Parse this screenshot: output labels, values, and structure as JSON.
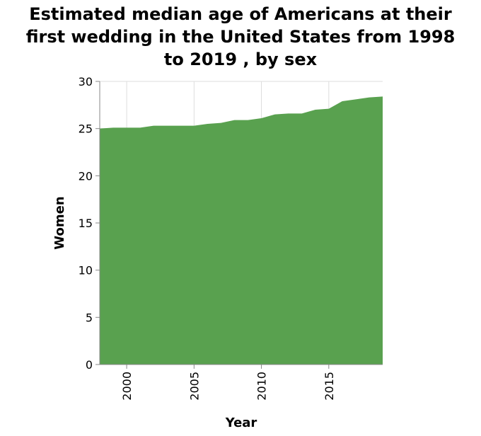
{
  "chart_data": {
    "type": "area",
    "title_lines": [
      "Estimated median age of Americans at their",
      "first wedding in the United States from 1998",
      "to 2019 , by sex"
    ],
    "xlabel": "Year",
    "ylabel": "Women",
    "xlim": [
      1998,
      2019
    ],
    "ylim": [
      0,
      30
    ],
    "x_ticks": [
      2000,
      2005,
      2010,
      2015
    ],
    "y_ticks": [
      0,
      5,
      10,
      15,
      20,
      25,
      30
    ],
    "grid": true,
    "legend": false,
    "color": "#59a14f",
    "series": [
      {
        "x": [
          1998,
          1999,
          2000,
          2001,
          2002,
          2003,
          2004,
          2005,
          2006,
          2007,
          2008,
          2009,
          2010,
          2011,
          2012,
          2013,
          2014,
          2015,
          2016,
          2017,
          2018,
          2019
        ],
        "values": [
          25.0,
          25.1,
          25.1,
          25.1,
          25.3,
          25.3,
          25.3,
          25.3,
          25.5,
          25.6,
          25.9,
          25.9,
          26.1,
          26.5,
          26.6,
          26.6,
          27.0,
          27.1,
          27.9,
          28.1,
          28.3,
          28.4
        ]
      }
    ]
  }
}
